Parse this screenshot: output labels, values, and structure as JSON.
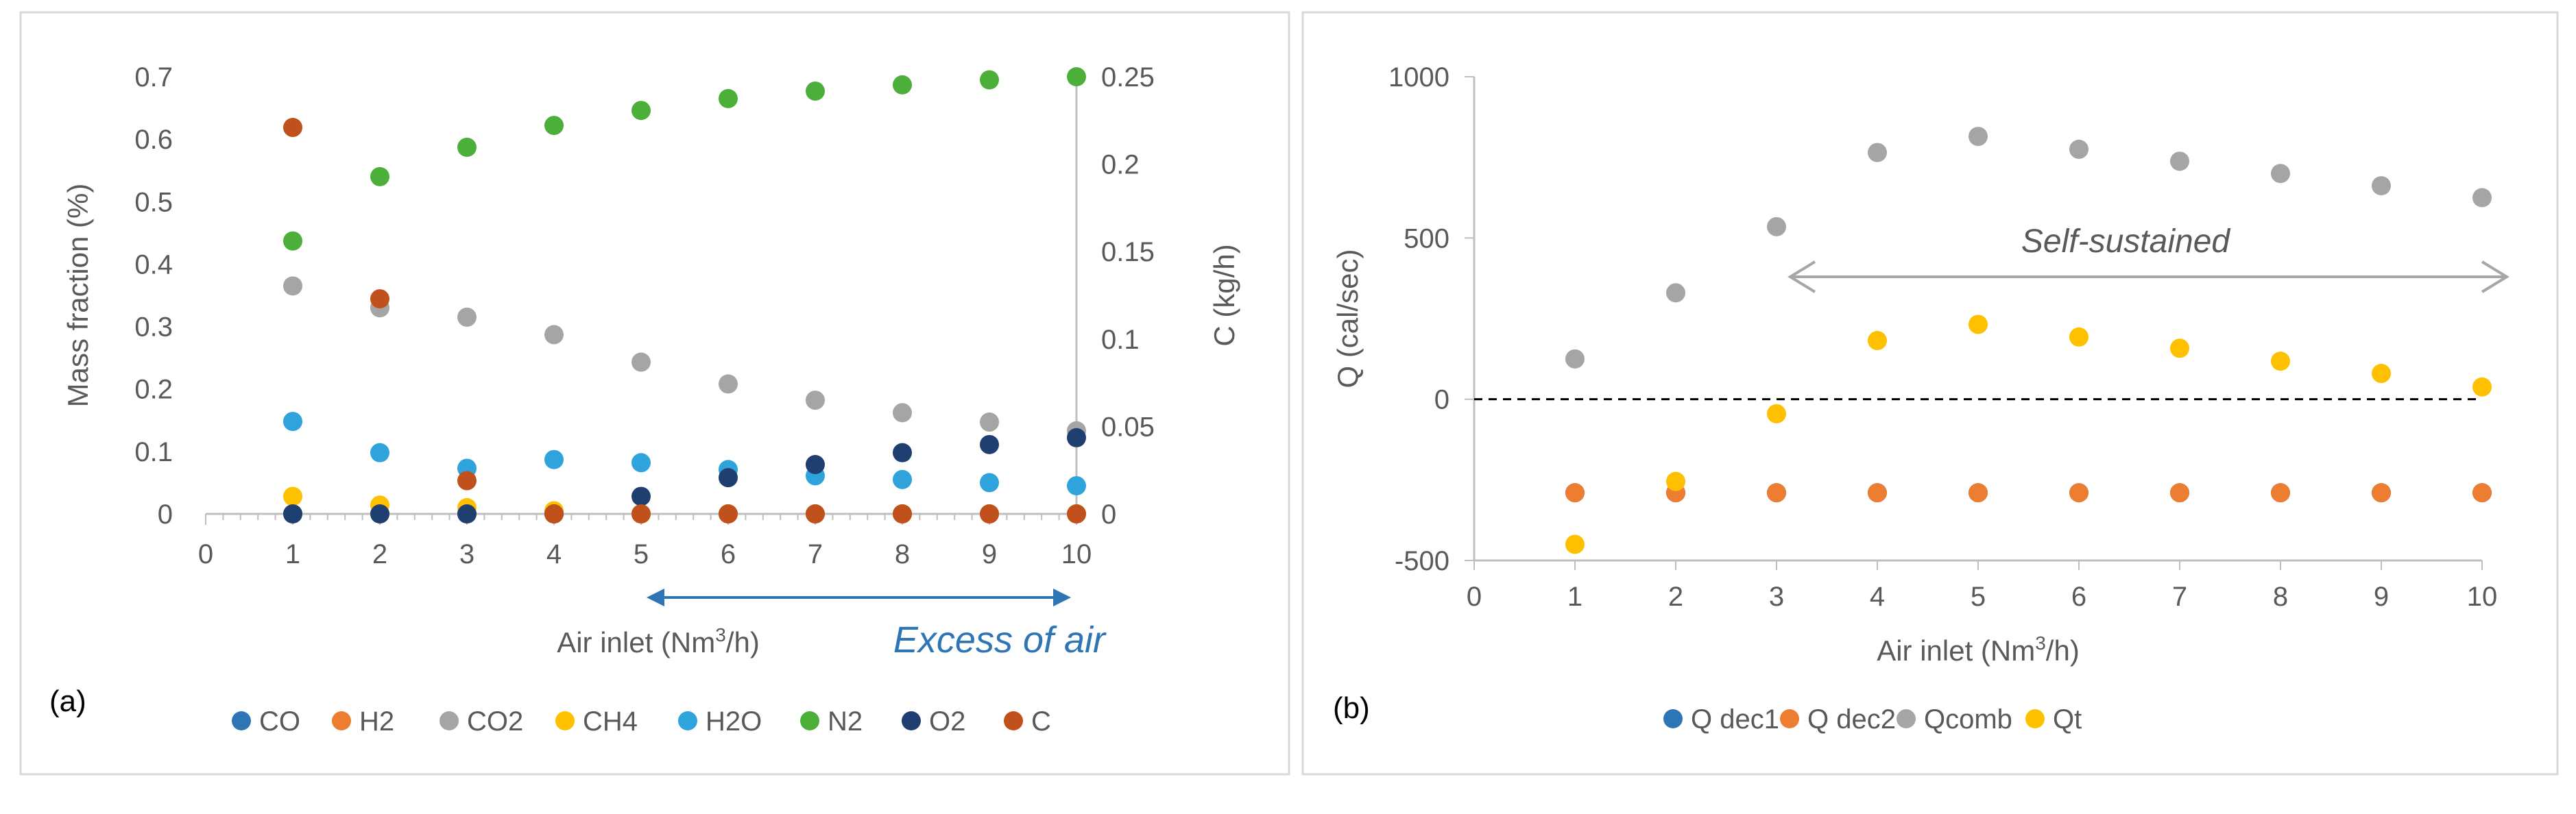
{
  "chart_data": [
    {
      "type": "scatter",
      "panel_label": "(a)",
      "xlabel_prefix": "Air inlet (Nm",
      "xlabel_sup": "3",
      "xlabel_suffix": "/h)",
      "ylabel": "Mass fraction (%)",
      "y2label": "C (kg/h)",
      "annotation": "Excess of air",
      "annotation_arrow": [
        5,
        10
      ],
      "xlim": [
        0,
        10
      ],
      "ylim": [
        0,
        0.7
      ],
      "y2lim": [
        0,
        0.25
      ],
      "xticks": [
        "0",
        "1",
        "2",
        "3",
        "4",
        "5",
        "6",
        "7",
        "8",
        "9",
        "10"
      ],
      "yticks": [
        "0",
        "0.1",
        "0.2",
        "0.3",
        "0.4",
        "0.5",
        "0.6",
        "0.7"
      ],
      "y2ticks": [
        "0",
        "0.05",
        "0.1",
        "0.15",
        "0.2",
        "0.25"
      ],
      "x": [
        1,
        2,
        3,
        4,
        5,
        6,
        7,
        8,
        9,
        10
      ],
      "legend_position": "bottom",
      "series": [
        {
          "name": "CO",
          "color": "#2e75b6",
          "axis": "left",
          "values": [
            0,
            0,
            0,
            0,
            0,
            0,
            0,
            0,
            0,
            0
          ]
        },
        {
          "name": "H2",
          "color": "#ed7d31",
          "axis": "left",
          "values": [
            0,
            0,
            0,
            0,
            0,
            0,
            0,
            0,
            0,
            0
          ]
        },
        {
          "name": "CO2",
          "color": "#a5a5a5",
          "axis": "left",
          "values": [
            0.365,
            0.33,
            0.315,
            0.287,
            0.243,
            0.208,
            0.182,
            0.162,
            0.147,
            0.133
          ]
        },
        {
          "name": "CH4",
          "color": "#ffc000",
          "axis": "left",
          "values": [
            0.028,
            0.014,
            0.01,
            0.005,
            0,
            0,
            0,
            0,
            0,
            0
          ]
        },
        {
          "name": "H2O",
          "color": "#2ea3dc",
          "axis": "left",
          "values": [
            0.148,
            0.098,
            0.073,
            0.087,
            0.082,
            0.071,
            0.061,
            0.055,
            0.05,
            0.045
          ]
        },
        {
          "name": "N2",
          "color": "#4caf3a",
          "axis": "left",
          "values": [
            0.437,
            0.54,
            0.587,
            0.622,
            0.646,
            0.665,
            0.677,
            0.687,
            0.695,
            0.7
          ]
        },
        {
          "name": "O2",
          "color": "#1f3f70",
          "axis": "left",
          "values": [
            0,
            0,
            0,
            0,
            0.028,
            0.058,
            0.079,
            0.098,
            0.111,
            0.122
          ]
        },
        {
          "name": "C",
          "color": "#c0501c",
          "axis": "right",
          "values": [
            0.221,
            0.123,
            0.019,
            0,
            0,
            0,
            0,
            0,
            0,
            0
          ]
        }
      ]
    },
    {
      "type": "scatter",
      "panel_label": "(b)",
      "xlabel_prefix": "Air inlet (Nm",
      "xlabel_sup": "3",
      "xlabel_suffix": "/h)",
      "ylabel": "Q (cal/sec)",
      "annotation": "Self-sustained",
      "annotation_arrow": [
        3,
        10
      ],
      "reference_line": 0,
      "xlim": [
        0,
        10
      ],
      "ylim": [
        -500,
        1000
      ],
      "xticks": [
        "0",
        "1",
        "2",
        "3",
        "4",
        "5",
        "6",
        "7",
        "8",
        "9",
        "10"
      ],
      "yticks": [
        "-500",
        "0",
        "500",
        "1000"
      ],
      "x": [
        1,
        2,
        3,
        4,
        5,
        6,
        7,
        8,
        9,
        10
      ],
      "legend_position": "bottom",
      "series": [
        {
          "name": "Q dec1",
          "color": "#2e75b6",
          "values": [
            -290,
            -290,
            -290,
            -290,
            -290,
            -290,
            -290,
            -290,
            -290,
            -290
          ]
        },
        {
          "name": "Q dec2",
          "color": "#ed7d31",
          "values": [
            -290,
            -290,
            -290,
            -290,
            -290,
            -290,
            -290,
            -290,
            -290,
            -290
          ]
        },
        {
          "name": "Qcomb",
          "color": "#a5a5a5",
          "values": [
            125,
            330,
            535,
            765,
            815,
            775,
            738,
            700,
            662,
            625
          ]
        },
        {
          "name": "Qt",
          "color": "#ffc000",
          "values": [
            -450,
            -255,
            -45,
            182,
            232,
            193,
            158,
            118,
            80,
            38
          ]
        }
      ]
    }
  ]
}
